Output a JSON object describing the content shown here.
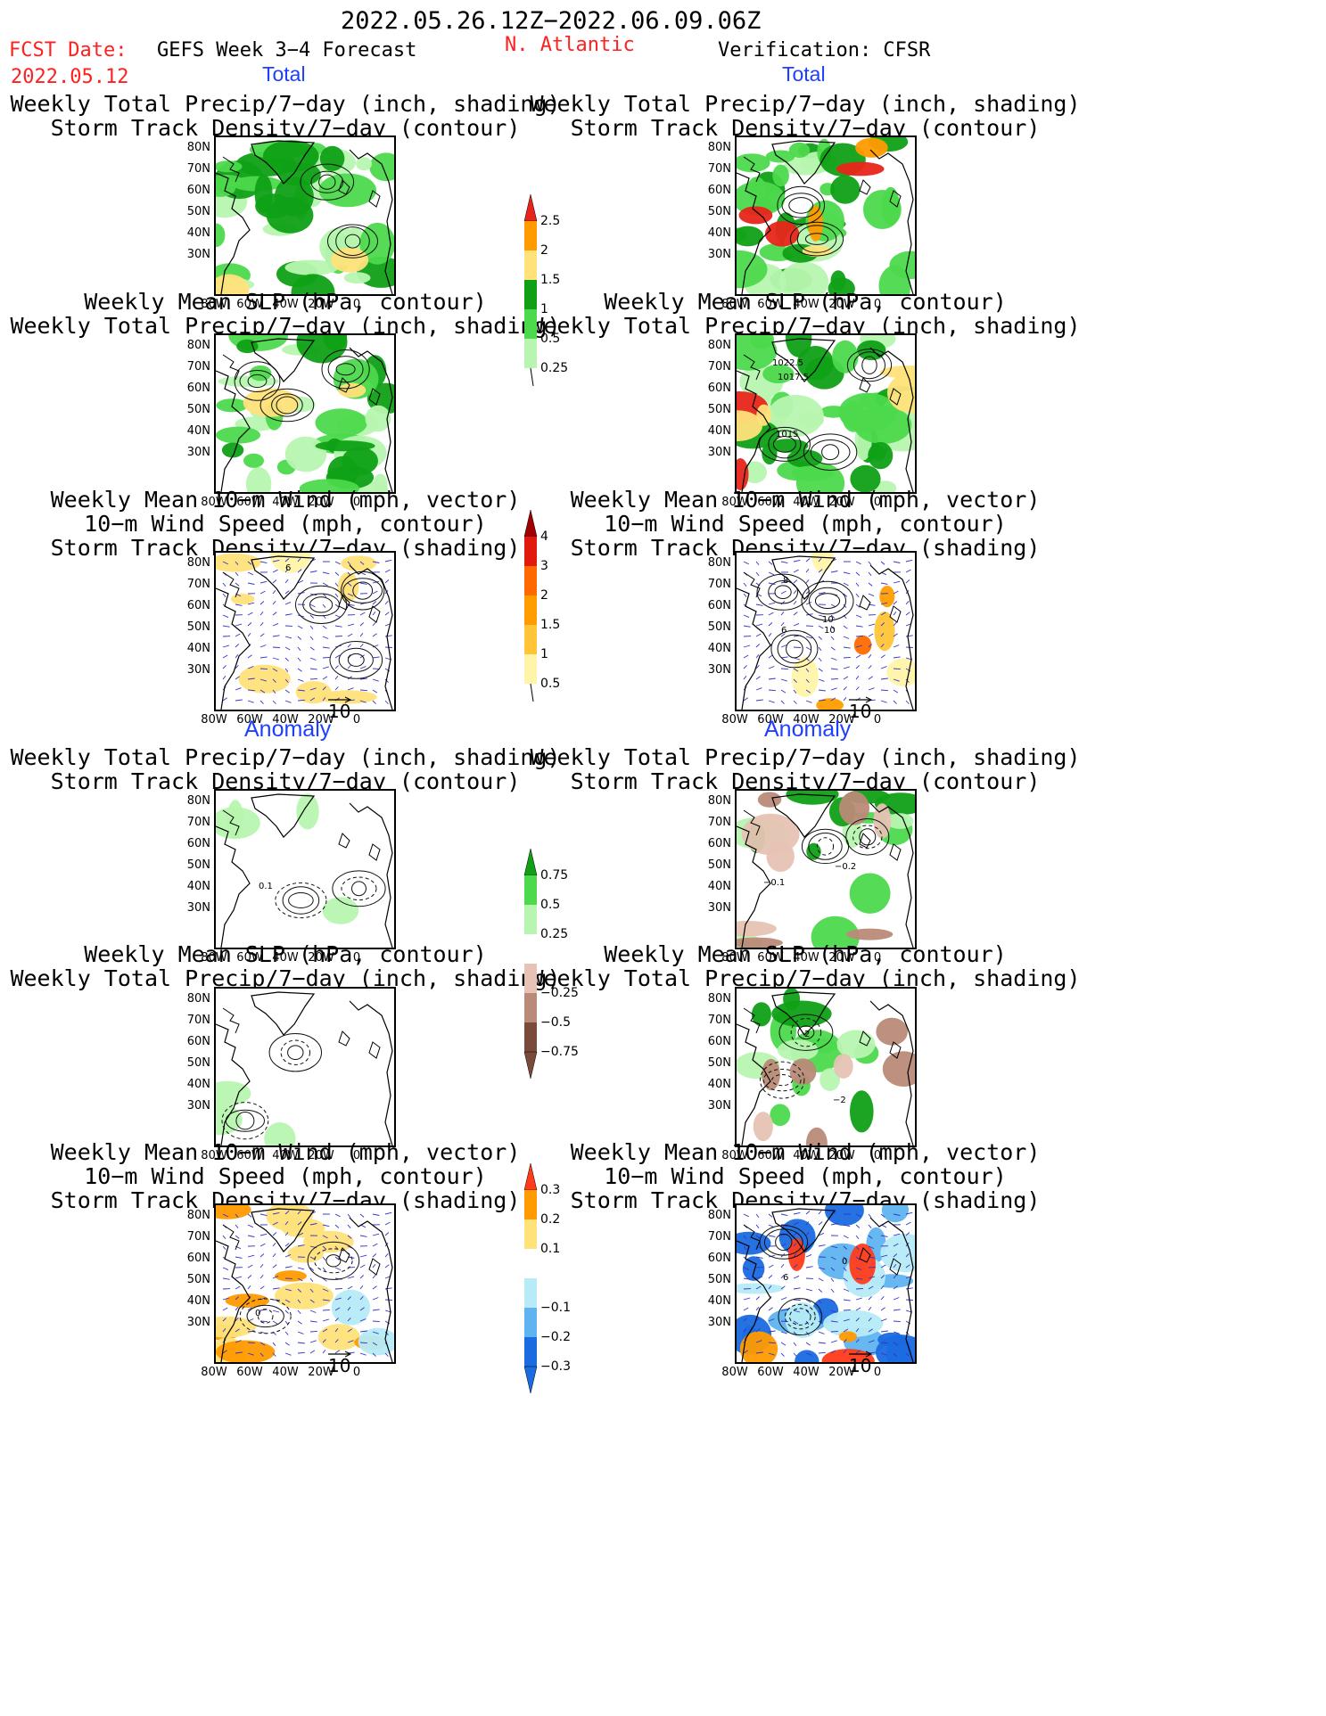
{
  "header": {
    "period": "2022.05.26.12Z−2022.06.09.06Z",
    "fcst_label": "FCST Date:",
    "fcst_date": "2022.05.12",
    "model": "GEFS Week 3−4 Forecast",
    "region": "N. Atlantic",
    "verification": "Verification: CFSR"
  },
  "sections": {
    "total": "Total",
    "anomaly": "Anomaly"
  },
  "panel_titles": {
    "precip_storm": [
      "Weekly Total Precip/7−day (inch, shading)",
      "Storm Track Density/7−day (contour)"
    ],
    "slp_precip": [
      "Weekly Mean SLP (hPa, contour)",
      "Weekly Total Precip/7−day (inch, shading)"
    ],
    "wind_storm": [
      "Weekly Mean 10−m Wind (mph, vector)",
      "10−m Wind Speed (mph, contour)",
      "Storm Track Density/7−day (shading)"
    ]
  },
  "axes": {
    "lat_labels": [
      "80N",
      "70N",
      "60N",
      "50N",
      "40N",
      "30N"
    ],
    "lon_labels": [
      "80W",
      "60W",
      "40W",
      "20W",
      "0"
    ]
  },
  "colorbars": {
    "precip_total": {
      "labels": [
        "2.5",
        "2",
        "1.5",
        "1",
        "0.5",
        "0.25"
      ],
      "colors": [
        "#e8251a",
        "#ff9a00",
        "#ffe27a",
        "#0fa016",
        "#4cd94c",
        "#b7f5b0"
      ]
    },
    "storm_total": {
      "labels": [
        "4",
        "3",
        "2",
        "1.5",
        "1",
        "0.5"
      ],
      "colors": [
        "#a00000",
        "#e01b0d",
        "#ff6a00",
        "#ff9d00",
        "#ffc438",
        "#fff4a8"
      ]
    },
    "precip_anom": {
      "labels": [
        "0.75",
        "0.5",
        "0.25",
        "−0.25",
        "−0.5",
        "−0.75"
      ],
      "colors": [
        "#0fa016",
        "#4cd94c",
        "#b7f5b0",
        "#ffffff",
        "#e6c3b4",
        "#b98a78",
        "#7a4a3b"
      ]
    },
    "storm_anom": {
      "labels": [
        "0.3",
        "0.2",
        "0.1",
        "−0.1",
        "−0.2",
        "−0.3"
      ],
      "colors": [
        "#ff3b1a",
        "#ff9a00",
        "#ffe27a",
        "#ffffff",
        "#b6ebf7",
        "#5fb3f0",
        "#1a6ae0"
      ]
    }
  },
  "contour_labels": {
    "gefs_precip_anom": "0.1",
    "cfsr_slp_total": [
      "1022.5",
      "1017.5",
      "1015"
    ],
    "cfsr_precip_anom": [
      "−0.2",
      "−0.1"
    ],
    "cfsr_slp_anom": [
      "2",
      "−2"
    ],
    "cfsr_wind_total": [
      "6",
      "8",
      "10",
      "10"
    ],
    "cfsr_wind_anom": [
      "0",
      "6"
    ],
    "gefs_wind_total": "6",
    "gefs_wind_anom": "0"
  },
  "vector_ref": "10",
  "colors": {
    "title_red": "#ff2020",
    "section_blue": "#1f3fff"
  }
}
